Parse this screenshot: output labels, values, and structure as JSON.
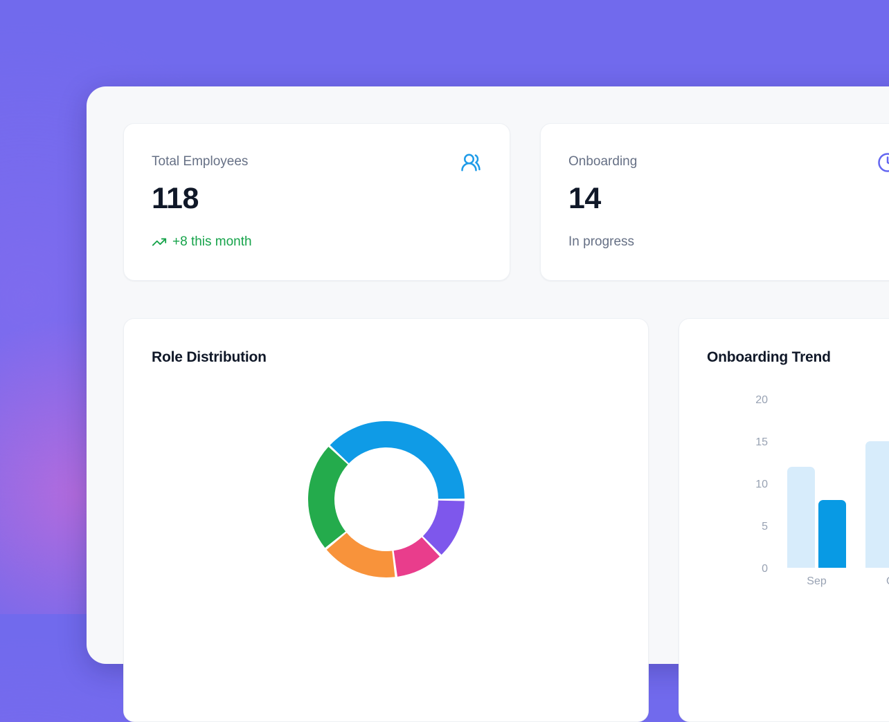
{
  "theme": {
    "background_purple": "#716aed",
    "background_glow_pink": "#e46cd0",
    "panel_bg": "#f7f8fa",
    "card_bg": "#ffffff",
    "text_primary": "#101828",
    "text_secondary": "#667085",
    "axis_gray": "#98a2b3"
  },
  "stat_cards": {
    "total_employees": {
      "label": "Total Employees",
      "value": "118",
      "delta": "+8 this month",
      "delta_color": "#16a34a",
      "icon": "users-round-icon",
      "icon_color": "#1e9be8"
    },
    "onboarding": {
      "label": "Onboarding",
      "value": "14",
      "status": "In progress",
      "icon": "clock-icon",
      "icon_color": "#6366f1"
    }
  },
  "chart_data": [
    {
      "type": "pie",
      "variant": "doughnut",
      "title": "Role Distribution",
      "legend_visible": false,
      "rotation_deg": -47,
      "cutout_ratio": 0.67,
      "total": 118,
      "segments": [
        {
          "name": "blue-segment",
          "color": "#0f9be6",
          "value": 45
        },
        {
          "name": "purple-segment",
          "color": "#7e57ec",
          "value": 15
        },
        {
          "name": "pink-segment",
          "color": "#e93d8c",
          "value": 12
        },
        {
          "name": "orange-segment",
          "color": "#f8933b",
          "value": 19
        },
        {
          "name": "green-segment",
          "color": "#24ab4c",
          "value": 27
        }
      ]
    },
    {
      "type": "bar",
      "title": "Onboarding Trend",
      "categories": [
        "Sep",
        "Oct"
      ],
      "series": [
        {
          "name": "light-blue-series",
          "color": "#d7ecfb",
          "values": [
            12,
            15
          ]
        },
        {
          "name": "dark-blue-series",
          "color": "#089ae4",
          "values": [
            8,
            null
          ]
        }
      ],
      "ylim": [
        0,
        20
      ],
      "yticks": [
        20,
        15,
        10,
        5,
        0
      ],
      "grid": false,
      "legend_position": "none"
    }
  ]
}
